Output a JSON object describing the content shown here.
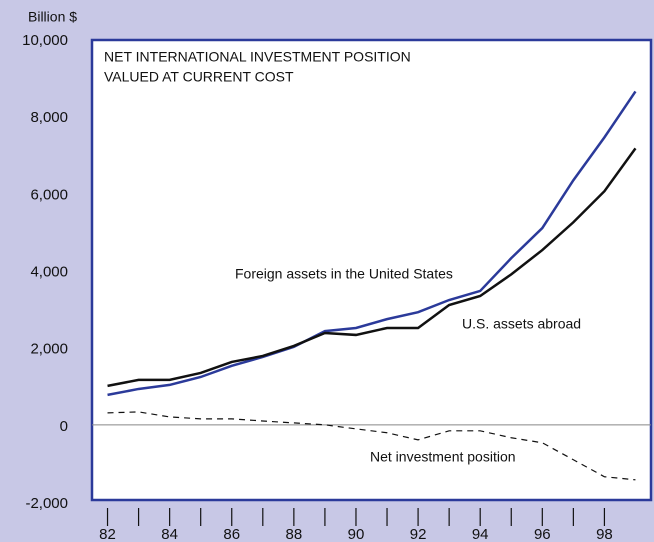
{
  "chart_data": {
    "type": "line",
    "title": [
      "NET INTERNATIONAL INVESTMENT POSITION",
      "VALUED  AT CURRENT COST"
    ],
    "y_axis_label": "Billion $",
    "x": [
      1982,
      1983,
      1984,
      1985,
      1986,
      1987,
      1988,
      1989,
      1990,
      1991,
      1992,
      1993,
      1994,
      1995,
      1996,
      1997,
      1998,
      1999
    ],
    "series": [
      {
        "name": "Foreign assets in the United States",
        "color": "#2b3a9a",
        "dash": false,
        "values": [
          776,
          930,
          1035,
          1240,
          1530,
          1760,
          2020,
          2430,
          2510,
          2740,
          2920,
          3235,
          3470,
          4320,
          5100,
          6340,
          7450,
          8640
        ]
      },
      {
        "name": "U.S.  assets abroad",
        "color": "#111111",
        "dash": false,
        "values": [
          1010,
          1165,
          1165,
          1345,
          1630,
          1785,
          2045,
          2380,
          2330,
          2510,
          2510,
          3105,
          3340,
          3900,
          4530,
          5250,
          6055,
          7165
        ]
      },
      {
        "name": "Net investment position",
        "color": "#111111",
        "dash": true,
        "values": [
          310,
          335,
          205,
          155,
          155,
          100,
          50,
          0,
          -105,
          -205,
          -390,
          -155,
          -155,
          -335,
          -465,
          -905,
          -1345,
          -1425
        ]
      }
    ],
    "xlim": [
      1981.5,
      1999.5
    ],
    "xticks": [
      {
        "value": 1982,
        "label": "82"
      },
      1983,
      {
        "value": 1984,
        "label": "84"
      },
      1985,
      {
        "value": 1986,
        "label": "86"
      },
      1987,
      {
        "value": 1988,
        "label": "88"
      },
      1989,
      {
        "value": 1990,
        "label": "90"
      },
      1991,
      {
        "value": 1992,
        "label": "92"
      },
      1993,
      {
        "value": 1994,
        "label": "94"
      },
      1995,
      {
        "value": 1996,
        "label": "96"
      },
      1997,
      {
        "value": 1998,
        "label": "98"
      }
    ],
    "ylim": [
      -2000,
      10000
    ],
    "yticks": [
      {
        "value": -2000,
        "label": "-2,000"
      },
      0,
      {
        "value": 2000,
        "label": "2,000"
      },
      {
        "value": 4000,
        "label": "4,000"
      },
      {
        "value": 6000,
        "label": "6,000"
      },
      {
        "value": 8000,
        "label": "8,000"
      },
      {
        "value": 10000,
        "label": "10,000"
      }
    ],
    "reference_line": 0,
    "grid": false
  }
}
